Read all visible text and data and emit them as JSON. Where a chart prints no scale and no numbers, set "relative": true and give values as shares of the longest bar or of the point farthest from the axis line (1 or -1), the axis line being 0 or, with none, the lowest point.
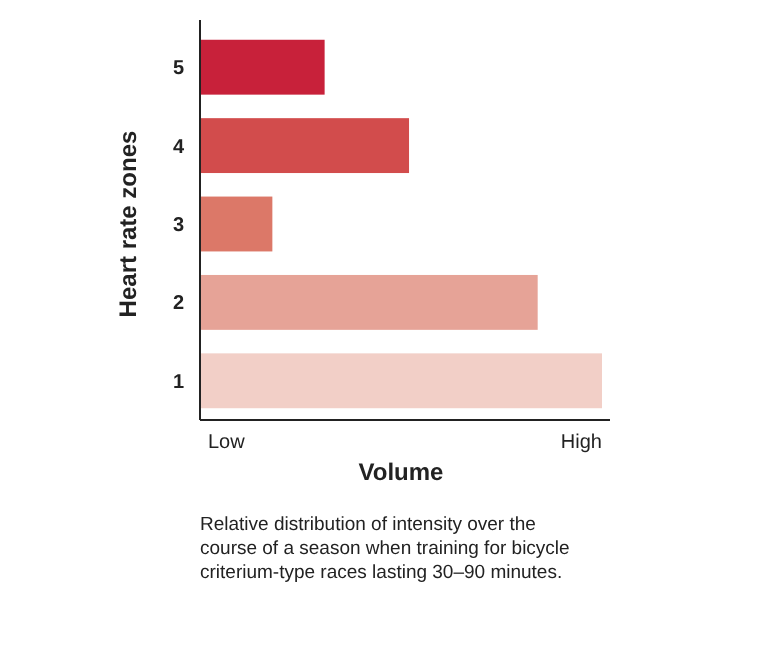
{
  "chart_data": {
    "type": "bar",
    "orientation": "horizontal",
    "relative": true,
    "xlabel": "Volume",
    "ylabel": "Heart rate zones",
    "categories": [
      "5",
      "4",
      "3",
      "2",
      "1"
    ],
    "values": [
      0.31,
      0.52,
      0.18,
      0.84,
      1
    ],
    "colors": [
      "#c8213a",
      "#d24c4c",
      "#dc7868",
      "#e6a397",
      "#f2cfc7"
    ],
    "annotations": [
      "Low",
      "High",
      "Relative distribution of intensity over the course of a season when training for bicycle criterium-type races lasting 30–90 minutes."
    ]
  }
}
